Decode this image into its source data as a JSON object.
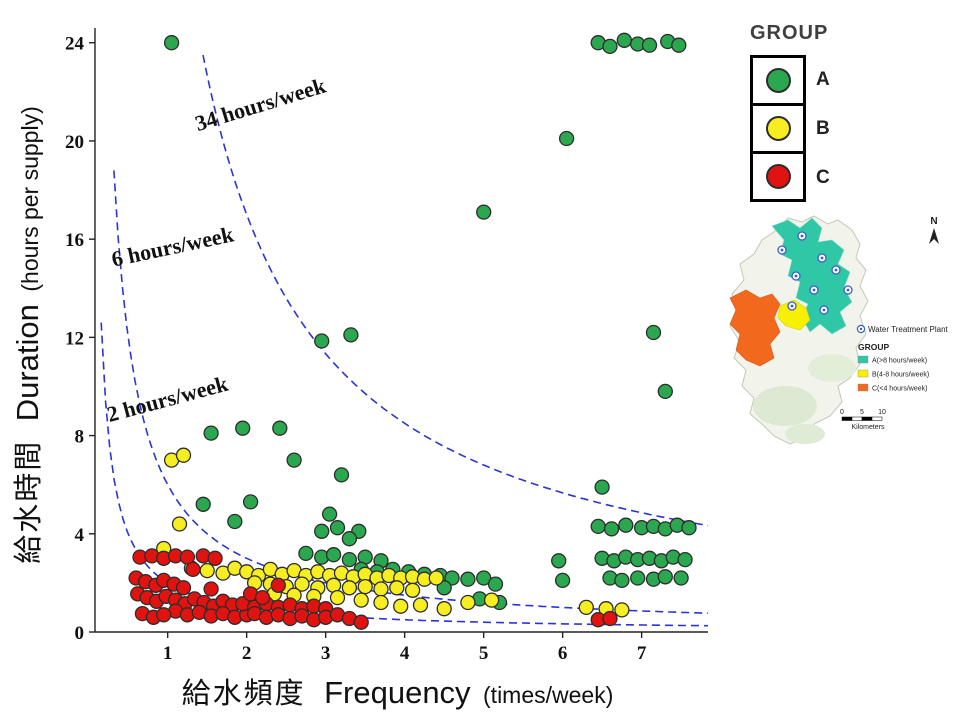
{
  "axes": {
    "x": {
      "label_jp": "給水頻度",
      "label_en": "Frequency",
      "label_unit": "(times/week)",
      "ticks": [
        1,
        2,
        3,
        4,
        5,
        6,
        7
      ],
      "range": [
        0.08,
        7.84
      ]
    },
    "y": {
      "label_jp": "給水時間",
      "label_en": "Duration",
      "label_unit": "(hours per supply)",
      "ticks": [
        0,
        4,
        8,
        12,
        16,
        20,
        24
      ],
      "range": [
        0,
        24.6
      ]
    }
  },
  "colors": {
    "curve": "#2a35d4",
    "point_stroke": "#2d2d2d",
    "axis": "#222222"
  },
  "chart_data": {
    "type": "scatter",
    "xlabel": "給水頻度 Frequency (times/week)",
    "ylabel": "給水時間 Duration (hours per supply)",
    "xlim": [
      0.08,
      7.84
    ],
    "ylim": [
      0,
      24.6
    ],
    "series": [
      {
        "name": "A",
        "color": "#2ba84f",
        "points": [
          [
            1.05,
            24
          ],
          [
            6.45,
            24
          ],
          [
            6.6,
            23.85
          ],
          [
            6.78,
            24.1
          ],
          [
            6.95,
            23.95
          ],
          [
            7.1,
            23.9
          ],
          [
            7.33,
            24.05
          ],
          [
            7.47,
            23.9
          ],
          [
            6.05,
            20.1
          ],
          [
            5.0,
            17.1
          ],
          [
            7.15,
            12.2
          ],
          [
            3.32,
            12.1
          ],
          [
            2.95,
            11.85
          ],
          [
            7.3,
            9.8
          ],
          [
            1.55,
            8.1
          ],
          [
            1.95,
            8.3
          ],
          [
            2.42,
            8.3
          ],
          [
            2.6,
            7.0
          ],
          [
            3.2,
            6.4
          ],
          [
            6.5,
            5.9
          ],
          [
            1.45,
            5.2
          ],
          [
            2.05,
            5.3
          ],
          [
            3.05,
            4.8
          ],
          [
            1.85,
            4.5
          ],
          [
            2.95,
            4.1
          ],
          [
            3.15,
            4.25
          ],
          [
            3.42,
            4.1
          ],
          [
            3.3,
            3.8
          ],
          [
            6.45,
            4.3
          ],
          [
            6.62,
            4.2
          ],
          [
            6.8,
            4.35
          ],
          [
            7.0,
            4.25
          ],
          [
            7.15,
            4.3
          ],
          [
            7.3,
            4.2
          ],
          [
            7.45,
            4.35
          ],
          [
            7.6,
            4.25
          ],
          [
            2.75,
            3.2
          ],
          [
            2.95,
            3.05
          ],
          [
            3.1,
            3.15
          ],
          [
            3.3,
            2.95
          ],
          [
            3.5,
            3.05
          ],
          [
            3.7,
            2.9
          ],
          [
            3.45,
            2.55
          ],
          [
            3.65,
            2.45
          ],
          [
            3.85,
            2.55
          ],
          [
            4.05,
            2.45
          ],
          [
            4.25,
            2.35
          ],
          [
            4.45,
            2.3
          ],
          [
            4.6,
            2.2
          ],
          [
            4.8,
            2.15
          ],
          [
            5.0,
            2.2
          ],
          [
            5.15,
            1.95
          ],
          [
            4.5,
            1.8
          ],
          [
            4.95,
            1.35
          ],
          [
            5.2,
            1.2
          ],
          [
            5.95,
            2.9
          ],
          [
            6.0,
            2.1
          ],
          [
            6.5,
            3.0
          ],
          [
            6.65,
            2.9
          ],
          [
            6.8,
            3.05
          ],
          [
            6.95,
            2.95
          ],
          [
            7.1,
            3.0
          ],
          [
            7.25,
            2.9
          ],
          [
            7.4,
            3.05
          ],
          [
            7.55,
            2.95
          ],
          [
            6.6,
            2.2
          ],
          [
            6.75,
            2.1
          ],
          [
            6.95,
            2.2
          ],
          [
            7.15,
            2.15
          ],
          [
            7.3,
            2.25
          ],
          [
            7.5,
            2.2
          ]
        ]
      },
      {
        "name": "B",
        "color": "#f6ee20",
        "points": [
          [
            1.05,
            7.0
          ],
          [
            1.2,
            7.2
          ],
          [
            1.15,
            4.4
          ],
          [
            0.95,
            3.4
          ],
          [
            1.3,
            2.6
          ],
          [
            1.5,
            2.5
          ],
          [
            1.7,
            2.4
          ],
          [
            1.85,
            2.6
          ],
          [
            2.0,
            2.45
          ],
          [
            2.15,
            2.3
          ],
          [
            2.3,
            2.55
          ],
          [
            2.45,
            2.35
          ],
          [
            2.6,
            2.5
          ],
          [
            2.75,
            2.3
          ],
          [
            2.9,
            2.45
          ],
          [
            3.05,
            2.3
          ],
          [
            3.2,
            2.4
          ],
          [
            3.35,
            2.25
          ],
          [
            3.5,
            2.35
          ],
          [
            3.65,
            2.2
          ],
          [
            3.8,
            2.3
          ],
          [
            3.95,
            2.2
          ],
          [
            4.1,
            2.25
          ],
          [
            4.25,
            2.15
          ],
          [
            4.4,
            2.2
          ],
          [
            2.1,
            2.0
          ],
          [
            2.3,
            1.95
          ],
          [
            2.5,
            1.85
          ],
          [
            2.7,
            1.95
          ],
          [
            2.9,
            1.8
          ],
          [
            3.1,
            1.9
          ],
          [
            3.3,
            1.8
          ],
          [
            3.5,
            1.85
          ],
          [
            3.7,
            1.75
          ],
          [
            3.9,
            1.8
          ],
          [
            4.1,
            1.7
          ],
          [
            2.35,
            1.55
          ],
          [
            2.6,
            1.5
          ],
          [
            2.85,
            1.45
          ],
          [
            3.15,
            1.4
          ],
          [
            3.45,
            1.3
          ],
          [
            3.7,
            1.2
          ],
          [
            3.95,
            1.05
          ],
          [
            4.2,
            1.1
          ],
          [
            4.5,
            0.95
          ],
          [
            4.8,
            1.2
          ],
          [
            5.1,
            1.3
          ],
          [
            6.3,
            1.0
          ],
          [
            6.55,
            0.95
          ],
          [
            6.75,
            0.9
          ]
        ]
      },
      {
        "name": "C",
        "color": "#e01310",
        "points": [
          [
            0.65,
            3.05
          ],
          [
            0.8,
            3.1
          ],
          [
            0.95,
            3.0
          ],
          [
            1.1,
            3.1
          ],
          [
            1.25,
            3.05
          ],
          [
            1.45,
            3.1
          ],
          [
            1.6,
            3.0
          ],
          [
            0.6,
            2.2
          ],
          [
            0.72,
            2.05
          ],
          [
            0.85,
            1.9
          ],
          [
            0.95,
            2.1
          ],
          [
            1.08,
            1.95
          ],
          [
            1.2,
            1.8
          ],
          [
            0.62,
            1.55
          ],
          [
            0.74,
            1.4
          ],
          [
            0.86,
            1.25
          ],
          [
            0.98,
            1.45
          ],
          [
            1.1,
            1.3
          ],
          [
            1.22,
            1.15
          ],
          [
            1.34,
            1.35
          ],
          [
            1.46,
            1.2
          ],
          [
            1.58,
            1.05
          ],
          [
            1.7,
            1.25
          ],
          [
            1.82,
            1.1
          ],
          [
            1.1,
            0.85
          ],
          [
            1.25,
            0.7
          ],
          [
            1.4,
            0.8
          ],
          [
            1.55,
            0.65
          ],
          [
            1.7,
            0.75
          ],
          [
            1.85,
            0.6
          ],
          [
            2.0,
            0.7
          ],
          [
            1.95,
            1.15
          ],
          [
            2.1,
            1.0
          ],
          [
            2.25,
            1.15
          ],
          [
            2.4,
            1.0
          ],
          [
            2.55,
            1.1
          ],
          [
            2.7,
            0.95
          ],
          [
            2.85,
            1.05
          ],
          [
            3.0,
            0.95
          ],
          [
            2.1,
            0.75
          ],
          [
            2.25,
            0.6
          ],
          [
            2.4,
            0.7
          ],
          [
            2.55,
            0.55
          ],
          [
            2.7,
            0.65
          ],
          [
            2.85,
            0.5
          ],
          [
            3.0,
            0.6
          ],
          [
            3.15,
            0.7
          ],
          [
            3.3,
            0.55
          ],
          [
            3.45,
            0.4
          ],
          [
            0.68,
            0.75
          ],
          [
            0.82,
            0.6
          ],
          [
            0.95,
            0.7
          ],
          [
            1.32,
            2.55
          ],
          [
            1.55,
            1.75
          ],
          [
            2.05,
            1.55
          ],
          [
            2.2,
            1.4
          ],
          [
            2.4,
            1.9
          ],
          [
            6.45,
            0.5
          ],
          [
            6.6,
            0.55
          ]
        ]
      }
    ],
    "curves": [
      {
        "label": "34 hours/week",
        "hours_per_week": 34,
        "clip_y": 23.5,
        "label_x": 2.2,
        "label_y": 21.2,
        "label_angle": -17
      },
      {
        "label": "6 hours/week",
        "hours_per_week": 6,
        "clip_y": 18.8,
        "label_x": 1.08,
        "label_y": 15.4,
        "label_angle": -12
      },
      {
        "label": "2 hours/week",
        "hours_per_week": 2,
        "clip_y": 12.6,
        "label_x": 1.02,
        "label_y": 9.2,
        "label_angle": -15
      }
    ]
  },
  "legend": {
    "title": "GROUP",
    "items": [
      {
        "label": "A",
        "color": "#2ba84f"
      },
      {
        "label": "B",
        "color": "#f6ee20"
      },
      {
        "label": "C",
        "color": "#e01310"
      }
    ]
  },
  "map": {
    "north_label": "N",
    "marker_legend": "Water Treatment Plant",
    "legend_title": "GROUP",
    "legend_items": [
      {
        "label": "A(>8 hours/week)",
        "color": "#2fc7a5"
      },
      {
        "label": "B(4-8 hours/week)",
        "color": "#f7f000"
      },
      {
        "label": "C(<4 hours/week)",
        "color": "#f2691d"
      }
    ],
    "scale_ticks": [
      "0",
      "5",
      "10"
    ],
    "scale_unit": "Kilometers"
  }
}
